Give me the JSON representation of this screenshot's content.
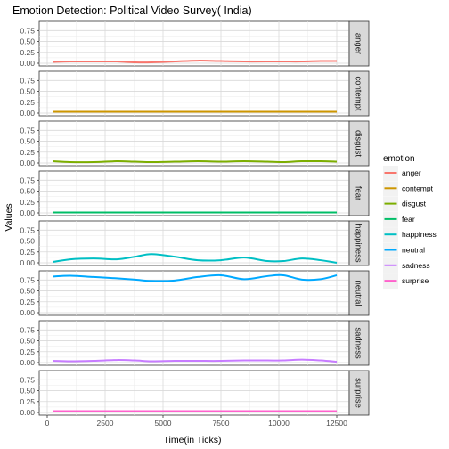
{
  "chart_data": {
    "type": "line",
    "title": "Emotion Detection: Political Video Survey( India)",
    "xlabel": "Time(in Ticks)",
    "ylabel": "Values",
    "facet_by": "emotion",
    "x_ticks": [
      0,
      2500,
      5000,
      7500,
      10000,
      12500
    ],
    "y_ticks": [
      0.0,
      0.25,
      0.5,
      0.75
    ],
    "y_tick_labels": [
      "0.00",
      "0.25",
      "0.50",
      "0.75"
    ],
    "x_tick_labels": [
      "0",
      "2500",
      "5000",
      "7500",
      "10000",
      "12500"
    ],
    "ylim": [
      0,
      0.9
    ],
    "xlim": [
      0,
      12500
    ],
    "grid": true,
    "legend": {
      "title": "emotion",
      "position": "right"
    },
    "x": [
      250,
      1000,
      2000,
      3000,
      3800,
      4500,
      5500,
      6500,
      7500,
      8500,
      9500,
      10200,
      11000,
      11800,
      12500
    ],
    "series": [
      {
        "name": "anger",
        "color": "#F8766D",
        "values": [
          0.03,
          0.04,
          0.04,
          0.04,
          0.02,
          0.02,
          0.04,
          0.06,
          0.05,
          0.04,
          0.04,
          0.04,
          0.04,
          0.05,
          0.05
        ]
      },
      {
        "name": "contempt",
        "color": "#CD9600",
        "values": [
          0.03,
          0.03,
          0.03,
          0.03,
          0.03,
          0.03,
          0.03,
          0.03,
          0.03,
          0.03,
          0.03,
          0.03,
          0.03,
          0.03,
          0.03
        ]
      },
      {
        "name": "disgust",
        "color": "#7CAE00",
        "values": [
          0.04,
          0.02,
          0.02,
          0.04,
          0.03,
          0.02,
          0.03,
          0.04,
          0.03,
          0.04,
          0.03,
          0.02,
          0.04,
          0.04,
          0.03
        ]
      },
      {
        "name": "fear",
        "color": "#00BE67",
        "values": [
          0.01,
          0.01,
          0.01,
          0.01,
          0.01,
          0.01,
          0.01,
          0.01,
          0.01,
          0.01,
          0.01,
          0.01,
          0.01,
          0.01,
          0.01
        ]
      },
      {
        "name": "happiness",
        "color": "#00BFC4",
        "values": [
          0.02,
          0.08,
          0.1,
          0.08,
          0.14,
          0.2,
          0.14,
          0.06,
          0.06,
          0.12,
          0.04,
          0.04,
          0.1,
          0.06,
          0.0
        ]
      },
      {
        "name": "neutral",
        "color": "#00A9FF",
        "values": [
          0.83,
          0.85,
          0.82,
          0.79,
          0.76,
          0.73,
          0.74,
          0.82,
          0.86,
          0.77,
          0.84,
          0.86,
          0.76,
          0.77,
          0.86
        ]
      },
      {
        "name": "sadness",
        "color": "#C77CFF",
        "values": [
          0.04,
          0.03,
          0.04,
          0.06,
          0.05,
          0.03,
          0.04,
          0.04,
          0.04,
          0.05,
          0.05,
          0.05,
          0.07,
          0.05,
          0.02
        ]
      },
      {
        "name": "surprise",
        "color": "#FF61CC",
        "values": [
          0.03,
          0.03,
          0.03,
          0.03,
          0.03,
          0.03,
          0.03,
          0.03,
          0.03,
          0.03,
          0.03,
          0.03,
          0.03,
          0.03,
          0.03
        ]
      }
    ]
  }
}
